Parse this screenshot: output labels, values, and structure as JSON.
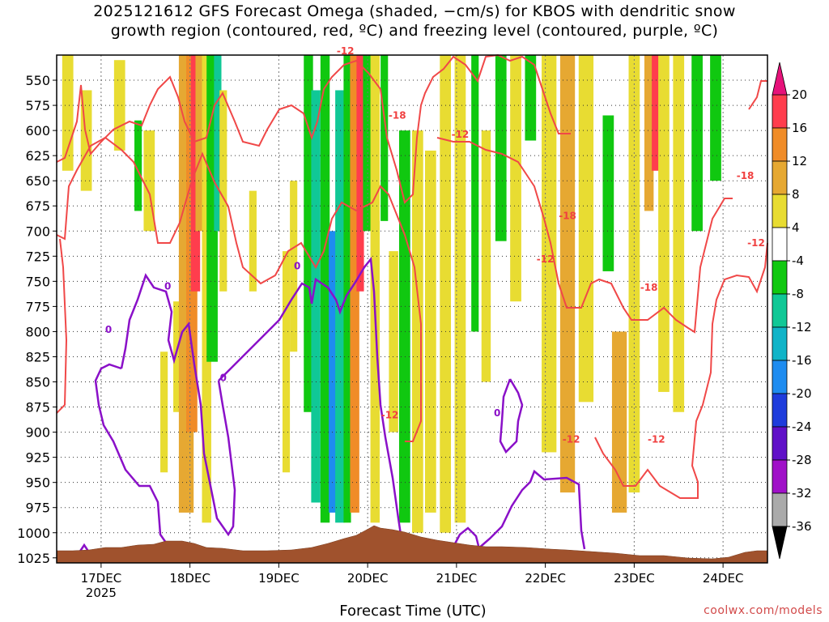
{
  "chart_data": {
    "type": "heatmap",
    "title_line1": "2025121612 GFS Forecast Omega (shaded, −cm/s) for KBOS with dendritic snow",
    "title_line2": "growth region (contoured, red, ºC) and freezing level (contoured, purple, ºC)",
    "xlabel": "Forecast Time (UTC)",
    "credit": "coolwx.com/models",
    "x_range_hours": [
      -12,
      180
    ],
    "x_ticks": [
      {
        "hour": 0,
        "label": "17DEC",
        "sub": "2025"
      },
      {
        "hour": 24,
        "label": "18DEC",
        "sub": ""
      },
      {
        "hour": 48,
        "label": "19DEC",
        "sub": ""
      },
      {
        "hour": 72,
        "label": "20DEC",
        "sub": ""
      },
      {
        "hour": 96,
        "label": "21DEC",
        "sub": ""
      },
      {
        "hour": 120,
        "label": "22DEC",
        "sub": ""
      },
      {
        "hour": 144,
        "label": "23DEC",
        "sub": ""
      },
      {
        "hour": 168,
        "label": "24DEC",
        "sub": ""
      }
    ],
    "y_range_hpa": [
      1030,
      525
    ],
    "y_ticks": [
      550,
      575,
      600,
      625,
      650,
      675,
      700,
      725,
      750,
      775,
      800,
      825,
      850,
      875,
      900,
      925,
      950,
      975,
      1000,
      1025
    ],
    "colorbar": {
      "labels": [
        "20",
        "16",
        "12",
        "8",
        "4",
        "-4",
        "-8",
        "-12",
        "-16",
        "-20",
        "-24",
        "-28",
        "-32",
        "-36"
      ],
      "bins": [
        {
          "from": 16,
          "to": 20,
          "color": "#ff3d4d"
        },
        {
          "from": 12,
          "to": 16,
          "color": "#f08c28"
        },
        {
          "from": 8,
          "to": 12,
          "color": "#e6a832"
        },
        {
          "from": 4,
          "to": 8,
          "color": "#e8dc32"
        },
        {
          "from": -4,
          "to": 4,
          "color": "#ffffff"
        },
        {
          "from": -8,
          "to": -4,
          "color": "#10c810"
        },
        {
          "from": -12,
          "to": -8,
          "color": "#10c896"
        },
        {
          "from": -16,
          "to": -12,
          "color": "#10b4c8"
        },
        {
          "from": -20,
          "to": -16,
          "color": "#1e8cf0"
        },
        {
          "from": -24,
          "to": -20,
          "color": "#1e3cdc"
        },
        {
          "from": -28,
          "to": -24,
          "color": "#6010c8"
        },
        {
          "from": -32,
          "to": -28,
          "color": "#a010c8"
        },
        {
          "from": -36,
          "to": -32,
          "color": "#aaaaaa"
        }
      ],
      "top_color": "#e6127a",
      "bottom_color": "#000000"
    },
    "omega_columns": [
      {
        "h": -9,
        "w": 3,
        "top": 525,
        "bot": 640,
        "v": 6
      },
      {
        "h": -4,
        "w": 3,
        "top": 560,
        "bot": 660,
        "v": 6
      },
      {
        "h": 5,
        "w": 3,
        "top": 530,
        "bot": 620,
        "v": 5
      },
      {
        "h": 10,
        "w": 2,
        "top": 590,
        "bot": 680,
        "v": -6
      },
      {
        "h": 13,
        "w": 3,
        "top": 600,
        "bot": 700,
        "v": 5
      },
      {
        "h": 17,
        "w": 2,
        "top": 820,
        "bot": 940,
        "v": 5
      },
      {
        "h": 21,
        "w": 3,
        "top": 770,
        "bot": 880,
        "v": 6
      },
      {
        "h": 23,
        "w": 4,
        "top": 525,
        "bot": 980,
        "v": 8
      },
      {
        "h": 24.5,
        "w": 3,
        "top": 525,
        "bot": 900,
        "v": 14
      },
      {
        "h": 25.5,
        "w": 2.5,
        "top": 525,
        "bot": 760,
        "v": 19
      },
      {
        "h": 27,
        "w": 3,
        "top": 525,
        "bot": 700,
        "v": 9
      },
      {
        "h": 28.5,
        "w": 2.5,
        "top": 525,
        "bot": 990,
        "v": 6
      },
      {
        "h": 30,
        "w": 3,
        "top": 525,
        "bot": 830,
        "v": -6
      },
      {
        "h": 31.5,
        "w": 2,
        "top": 525,
        "bot": 700,
        "v": -10
      },
      {
        "h": 33,
        "w": 2,
        "top": 560,
        "bot": 760,
        "v": 5
      },
      {
        "h": 41,
        "w": 2,
        "top": 660,
        "bot": 760,
        "v": 5
      },
      {
        "h": 50,
        "w": 2,
        "top": 720,
        "bot": 940,
        "v": 5
      },
      {
        "h": 52,
        "w": 2,
        "top": 650,
        "bot": 820,
        "v": 5
      },
      {
        "h": 56,
        "w": 2.5,
        "top": 525,
        "bot": 880,
        "v": -6
      },
      {
        "h": 58,
        "w": 2.5,
        "top": 560,
        "bot": 970,
        "v": -10
      },
      {
        "h": 60.5,
        "w": 2.5,
        "top": 525,
        "bot": 990,
        "v": -8
      },
      {
        "h": 62.5,
        "w": 2,
        "top": 700,
        "bot": 980,
        "v": -17
      },
      {
        "h": 64.5,
        "w": 2.5,
        "top": 560,
        "bot": 990,
        "v": -10
      },
      {
        "h": 66.5,
        "w": 2,
        "top": 525,
        "bot": 990,
        "v": -6
      },
      {
        "h": 68.5,
        "w": 2.5,
        "top": 525,
        "bot": 980,
        "v": 14
      },
      {
        "h": 70,
        "w": 2,
        "top": 525,
        "bot": 760,
        "v": 19
      },
      {
        "h": 72,
        "w": 2.5,
        "top": 525,
        "bot": 700,
        "v": -7
      },
      {
        "h": 74,
        "w": 2.5,
        "top": 525,
        "bot": 990,
        "v": 5
      },
      {
        "h": 76.5,
        "w": 2,
        "top": 525,
        "bot": 690,
        "v": -6
      },
      {
        "h": 79,
        "w": 2.5,
        "top": 720,
        "bot": 900,
        "v": 5
      },
      {
        "h": 82,
        "w": 3,
        "top": 600,
        "bot": 990,
        "v": -6
      },
      {
        "h": 85.5,
        "w": 3,
        "top": 600,
        "bot": 1000,
        "v": 5
      },
      {
        "h": 89,
        "w": 3,
        "top": 620,
        "bot": 980,
        "v": 6
      },
      {
        "h": 93,
        "w": 3,
        "top": 525,
        "bot": 1000,
        "v": 5
      },
      {
        "h": 97,
        "w": 3,
        "top": 525,
        "bot": 990,
        "v": 6
      },
      {
        "h": 101,
        "w": 2,
        "top": 525,
        "bot": 800,
        "v": -6
      },
      {
        "h": 104,
        "w": 2.5,
        "top": 600,
        "bot": 850,
        "v": 5
      },
      {
        "h": 108,
        "w": 3,
        "top": 525,
        "bot": 710,
        "v": -7
      },
      {
        "h": 112,
        "w": 3,
        "top": 525,
        "bot": 770,
        "v": 6
      },
      {
        "h": 116,
        "w": 3,
        "top": 525,
        "bot": 610,
        "v": -6
      },
      {
        "h": 121,
        "w": 4,
        "top": 525,
        "bot": 920,
        "v": 6
      },
      {
        "h": 126,
        "w": 4,
        "top": 525,
        "bot": 960,
        "v": 9
      },
      {
        "h": 131,
        "w": 4,
        "top": 525,
        "bot": 870,
        "v": 6
      },
      {
        "h": 137,
        "w": 3,
        "top": 585,
        "bot": 740,
        "v": -7
      },
      {
        "h": 140,
        "w": 4,
        "top": 800,
        "bot": 980,
        "v": 8
      },
      {
        "h": 144,
        "w": 3,
        "top": 525,
        "bot": 960,
        "v": 6
      },
      {
        "h": 148,
        "w": 2.5,
        "top": 525,
        "bot": 680,
        "v": 9
      },
      {
        "h": 150,
        "w": 2.5,
        "top": 525,
        "bot": 640,
        "v": 17
      },
      {
        "h": 152,
        "w": 3,
        "top": 525,
        "bot": 860,
        "v": 7
      },
      {
        "h": 156,
        "w": 3,
        "top": 525,
        "bot": 880,
        "v": 6
      },
      {
        "h": 161,
        "w": 3,
        "top": 525,
        "bot": 700,
        "v": -6
      },
      {
        "h": 166,
        "w": 3,
        "top": 525,
        "bot": 650,
        "v": -7
      }
    ],
    "freezing_level_labels": [
      {
        "h": 2,
        "p": 798,
        "text": "0"
      },
      {
        "h": 18,
        "p": 755,
        "text": "0"
      },
      {
        "h": 33,
        "p": 846,
        "text": "0"
      },
      {
        "h": 53,
        "p": 735,
        "text": "0"
      },
      {
        "h": 107,
        "p": 881,
        "text": "0"
      }
    ],
    "dgz_labels": [
      {
        "h": 66,
        "p": 521,
        "text": "-12"
      },
      {
        "h": 80,
        "p": 585,
        "text": "-18"
      },
      {
        "h": 97,
        "p": 604,
        "text": "-12"
      },
      {
        "h": 126,
        "p": 685,
        "text": "-18"
      },
      {
        "h": 120,
        "p": 728,
        "text": "-12"
      },
      {
        "h": 148,
        "p": 756,
        "text": "-18"
      },
      {
        "h": 174,
        "p": 645,
        "text": "-18"
      },
      {
        "h": 180,
        "p": 712,
        "text": "-12"
      },
      {
        "h": 78,
        "p": 883,
        "text": "-12"
      },
      {
        "h": 127,
        "p": 907,
        "text": "-12"
      },
      {
        "h": 150,
        "p": 907,
        "text": "-12"
      }
    ]
  }
}
